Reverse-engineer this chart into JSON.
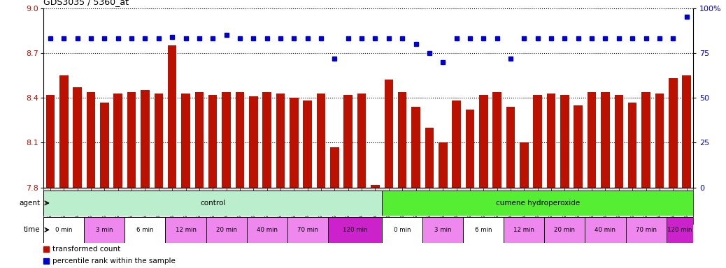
{
  "title": "GDS3035 / 5360_at",
  "samples": [
    "GSM184944",
    "GSM184952",
    "GSM184960",
    "GSM184945",
    "GSM184953",
    "GSM184961",
    "GSM184946",
    "GSM184954",
    "GSM184962",
    "GSM184947",
    "GSM184955",
    "GSM184963",
    "GSM184948",
    "GSM184956",
    "GSM184964",
    "GSM184949",
    "GSM184957",
    "GSM184965",
    "GSM184950",
    "GSM184958",
    "GSM184966",
    "GSM184951",
    "GSM184959",
    "GSM184967",
    "GSM184968",
    "GSM184976",
    "GSM184984",
    "GSM184969",
    "GSM184977",
    "GSM184985",
    "GSM184970",
    "GSM184978",
    "GSM184986",
    "GSM184971",
    "GSM184979",
    "GSM184987",
    "GSM184972",
    "GSM184980",
    "GSM184988",
    "GSM184973",
    "GSM184981",
    "GSM184989",
    "GSM184974",
    "GSM184982",
    "GSM184990",
    "GSM184975",
    "GSM184983",
    "GSM184991"
  ],
  "bar_values": [
    8.42,
    8.55,
    8.47,
    8.44,
    8.37,
    8.43,
    8.44,
    8.45,
    8.43,
    8.75,
    8.43,
    8.44,
    8.42,
    8.44,
    8.44,
    8.41,
    8.44,
    8.43,
    8.4,
    8.38,
    8.43,
    8.07,
    8.42,
    8.43,
    7.82,
    8.52,
    8.44,
    8.34,
    8.2,
    8.1,
    8.38,
    8.32,
    8.42,
    8.44,
    8.34,
    8.1,
    8.42,
    8.43,
    8.42,
    8.35,
    8.44,
    8.44,
    8.42,
    8.37,
    8.44,
    8.43,
    8.53,
    8.55
  ],
  "percentile_values": [
    83,
    83,
    83,
    83,
    83,
    83,
    83,
    83,
    83,
    84,
    83,
    83,
    83,
    85,
    83,
    83,
    83,
    83,
    83,
    83,
    83,
    72,
    83,
    83,
    83,
    83,
    83,
    80,
    75,
    70,
    83,
    83,
    83,
    83,
    72,
    83,
    83,
    83,
    83,
    83,
    83,
    83,
    83,
    83,
    83,
    83,
    83,
    95
  ],
  "ylim_left": [
    7.8,
    9.0
  ],
  "ylim_right": [
    0,
    100
  ],
  "yticks_left": [
    7.8,
    8.1,
    8.4,
    8.7,
    9.0
  ],
  "yticks_right": [
    0,
    25,
    50,
    75,
    100
  ],
  "bar_color": "#bb1100",
  "dot_color": "#0000cc",
  "bg_color": "#ffffff",
  "title_fontsize": 9,
  "agent_groups": [
    {
      "label": "control",
      "start": 0,
      "end": 25,
      "color": "#bbeecc"
    },
    {
      "label": "cumene hydroperoxide",
      "start": 25,
      "end": 48,
      "color": "#55ee33"
    }
  ],
  "time_groups": [
    {
      "label": "0 min",
      "start": 0,
      "end": 3,
      "color": "#ffffff"
    },
    {
      "label": "3 min",
      "start": 3,
      "end": 6,
      "color": "#ee88ee"
    },
    {
      "label": "6 min",
      "start": 6,
      "end": 9,
      "color": "#ffffff"
    },
    {
      "label": "12 min",
      "start": 9,
      "end": 12,
      "color": "#ee88ee"
    },
    {
      "label": "20 min",
      "start": 12,
      "end": 15,
      "color": "#ee88ee"
    },
    {
      "label": "40 min",
      "start": 15,
      "end": 18,
      "color": "#ee88ee"
    },
    {
      "label": "70 min",
      "start": 18,
      "end": 21,
      "color": "#ee88ee"
    },
    {
      "label": "120 min",
      "start": 21,
      "end": 25,
      "color": "#cc22cc"
    },
    {
      "label": "0 min",
      "start": 25,
      "end": 28,
      "color": "#ffffff"
    },
    {
      "label": "3 min",
      "start": 28,
      "end": 31,
      "color": "#ee88ee"
    },
    {
      "label": "6 min",
      "start": 31,
      "end": 34,
      "color": "#ffffff"
    },
    {
      "label": "12 min",
      "start": 34,
      "end": 37,
      "color": "#ee88ee"
    },
    {
      "label": "20 min",
      "start": 37,
      "end": 40,
      "color": "#ee88ee"
    },
    {
      "label": "40 min",
      "start": 40,
      "end": 43,
      "color": "#ee88ee"
    },
    {
      "label": "70 min",
      "start": 43,
      "end": 46,
      "color": "#ee88ee"
    },
    {
      "label": "120 min",
      "start": 46,
      "end": 48,
      "color": "#cc22cc"
    }
  ],
  "legend_items": [
    {
      "label": "transformed count",
      "color": "#bb1100"
    },
    {
      "label": "percentile rank within the sample",
      "color": "#0000cc"
    }
  ],
  "xtick_bg": "#dddddd"
}
